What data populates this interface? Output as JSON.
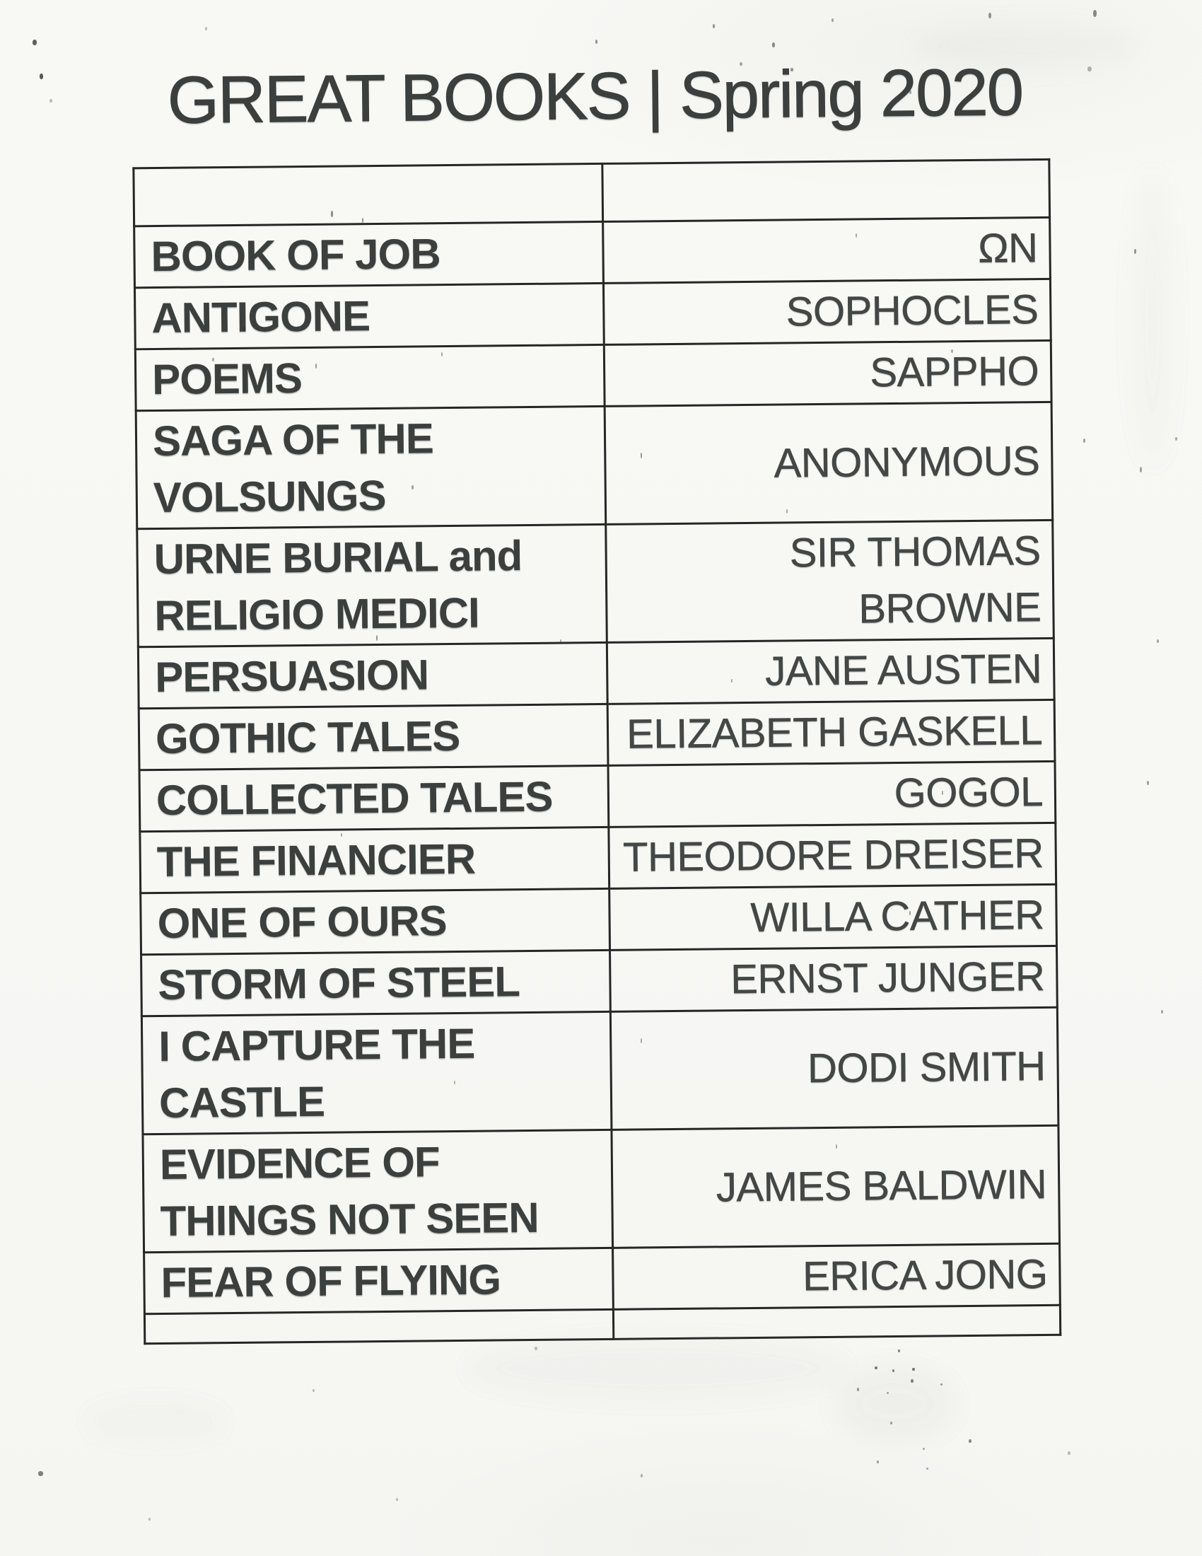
{
  "page": {
    "title": "GREAT BOOKS | Spring 2020"
  },
  "table": {
    "header": {
      "title": "",
      "author": ""
    },
    "rows": [
      {
        "title": "BOOK OF JOB",
        "author": "ΩN"
      },
      {
        "title": "ANTIGONE",
        "author": "SOPHOCLES"
      },
      {
        "title": "POEMS",
        "author": "SAPPHO"
      },
      {
        "title": "SAGA OF THE VOLSUNGS",
        "author": "ANONYMOUS"
      },
      {
        "title": "URNE BURIAL and RELIGIO MEDICI",
        "author": "SIR THOMAS BROWNE"
      },
      {
        "title": "PERSUASION",
        "author": "JANE AUSTEN"
      },
      {
        "title": "GOTHIC TALES",
        "author": "ELIZABETH GASKELL"
      },
      {
        "title": "COLLECTED TALES",
        "author": "GOGOL"
      },
      {
        "title": "THE FINANCIER",
        "author": "THEODORE DREISER"
      },
      {
        "title": "ONE OF OURS",
        "author": "WILLA CATHER"
      },
      {
        "title": "STORM OF STEEL",
        "author": "ERNST JUNGER"
      },
      {
        "title": "I CAPTURE THE CASTLE",
        "author": "DODI SMITH"
      },
      {
        "title": "EVIDENCE OF THINGS NOT SEEN",
        "author": "JAMES BALDWIN"
      },
      {
        "title": "FEAR OF FLYING",
        "author": "ERICA JONG"
      }
    ],
    "footer": {
      "title": "",
      "author": ""
    }
  },
  "colors": {
    "paper": "#f7f7f4",
    "ink": "#3b3f3e",
    "ink2": "#434746",
    "border": "#252726"
  }
}
